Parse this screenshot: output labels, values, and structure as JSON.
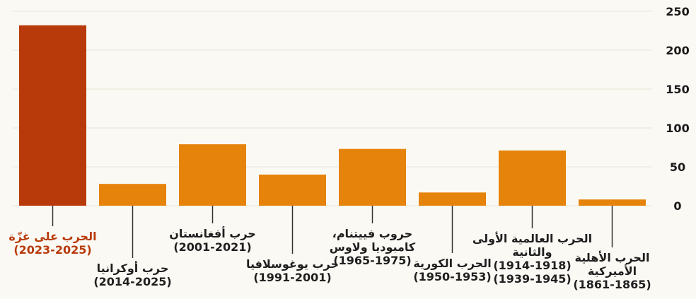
{
  "chart_data": {
    "type": "bar",
    "title": "",
    "xlabel": "",
    "ylabel": "",
    "ylim": [
      0,
      250
    ],
    "yticks": [
      0,
      50,
      100,
      150,
      200,
      250
    ],
    "grid": true,
    "y_axis_position": "right",
    "highlight_color": "#b83a0a",
    "bar_color": "#e5830b",
    "categories": [
      {
        "name": "الحرب على غزّة",
        "period": "(2023-2025)",
        "highlight": true
      },
      {
        "name": "حرب أوكرانيا",
        "period": "(2014-2025)"
      },
      {
        "name": "حرب أفغانستان",
        "period": "(2001-2021)"
      },
      {
        "name": "حرب يوغوسلافيا",
        "period": "(1991-2001)"
      },
      {
        "name": "حروب فييتنام، كامبوديا ولاوس",
        "period": "(1965-1975)"
      },
      {
        "name": "الحرب الكورية",
        "period": "(1950-1953)"
      },
      {
        "name": "الحرب العالمية الأولى والثانية",
        "period": "(1914-1918) (1939-1945)"
      },
      {
        "name": "الحرب الأهلية الأميركية",
        "period": "(1861-1865)"
      }
    ],
    "values": [
      232,
      28,
      79,
      40,
      73,
      17,
      71,
      8
    ]
  }
}
